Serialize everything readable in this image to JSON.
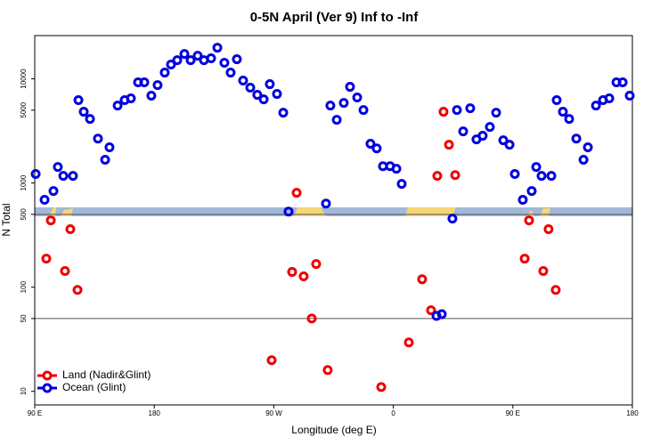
{
  "chart_data": {
    "type": "scatter",
    "title": "0-5N April (Ver 9)   Inf to -Inf",
    "x_label": "Longitude (deg E)",
    "y_label": "N Total",
    "log_y": true,
    "xlim": [
      90,
      540
    ],
    "xticks": [
      {
        "value": 90,
        "label": "90 E"
      },
      180,
      {
        "value": 270,
        "label": "90 W"
      },
      {
        "value": 360,
        "label": "0"
      },
      {
        "value": 450,
        "label": "90 E"
      },
      {
        "value": 540,
        "label": "180"
      }
    ],
    "ylim": [
      7.4,
      26000
    ],
    "yticks": [
      10,
      50,
      100,
      500,
      1000,
      5000,
      10000
    ],
    "hlines": [
      50,
      500
    ],
    "legend": "bottom-left",
    "series": [
      {
        "name": "Land (Nadir&Glint)",
        "color": "#ee0000",
        "x": [
          102.1,
          98.7,
          112.8,
          116.8,
          122.2,
          268.4,
          283.8,
          287.2,
          292.5,
          298.6,
          301.9,
          310.6,
          350.9,
          371.7,
          381.7,
          388.4,
          393.1,
          397.8,
          401.9,
          406.6,
          458.9,
          462.2,
          472.9,
          476.9,
          482.3
        ],
        "values": [
          438,
          188,
          143,
          360,
          94,
          19.9,
          140,
          805,
          127,
          50,
          167,
          16,
          11,
          29.5,
          119,
          60,
          1170,
          4830,
          2330,
          1190,
          188,
          438,
          143,
          360,
          94
        ]
      },
      {
        "name": "Ocean (Glint)",
        "color": "#0000dd",
        "x": [
          90.7,
          97.4,
          104.1,
          107.4,
          111.5,
          118.8,
          122.9,
          126.9,
          131.6,
          137.6,
          143.0,
          146.3,
          152.4,
          157.7,
          162.4,
          167.8,
          172.5,
          177.8,
          182.5,
          187.9,
          192.6,
          197.3,
          202.7,
          207.4,
          212.7,
          217.4,
          222.8,
          227.5,
          232.8,
          237.5,
          242.2,
          246.9,
          252.3,
          257.6,
          262.4,
          267.0,
          272.4,
          277.1,
          281.1,
          309.3,
          312.6,
          317.4,
          322.7,
          327.4,
          332.8,
          337.5,
          342.8,
          347.5,
          352.2,
          357.6,
          362.3,
          366.3,
          392.5,
          396.5,
          404.5,
          407.9,
          412.6,
          417.9,
          422.6,
          427.3,
          432.7,
          437.4,
          442.8,
          447.5,
          451.5,
          457.5,
          464.2,
          467.6,
          471.6,
          479.0,
          483.0,
          487.7,
          492.4,
          497.8,
          503.2,
          506.5,
          512.6,
          517.9,
          522.6,
          528.0,
          532.7,
          538.0
        ],
        "values": [
          1220,
          689,
          838,
          1425,
          1170,
          1170,
          6240,
          4830,
          4120,
          2670,
          1670,
          2200,
          5540,
          6240,
          6490,
          9250,
          9250,
          6890,
          8710,
          11480,
          13710,
          15100,
          17340,
          15100,
          16670,
          15100,
          15740,
          19910,
          14260,
          11480,
          15420,
          9620,
          8220,
          7020,
          6350,
          8890,
          7160,
          4730,
          532,
          635,
          5540,
          4040,
          5870,
          8380,
          6620,
          5020,
          2380,
          2150,
          1450,
          1450,
          1370,
          980,
          53,
          55,
          455,
          5020,
          3130,
          5220,
          2620,
          2840,
          3450,
          4730,
          2570,
          2330,
          1220,
          689,
          838,
          1425,
          1170,
          1170,
          6240,
          4830,
          4120,
          2670,
          1670,
          2200,
          5540,
          6240,
          6490,
          9250,
          9250,
          6890
        ]
      }
    ]
  }
}
